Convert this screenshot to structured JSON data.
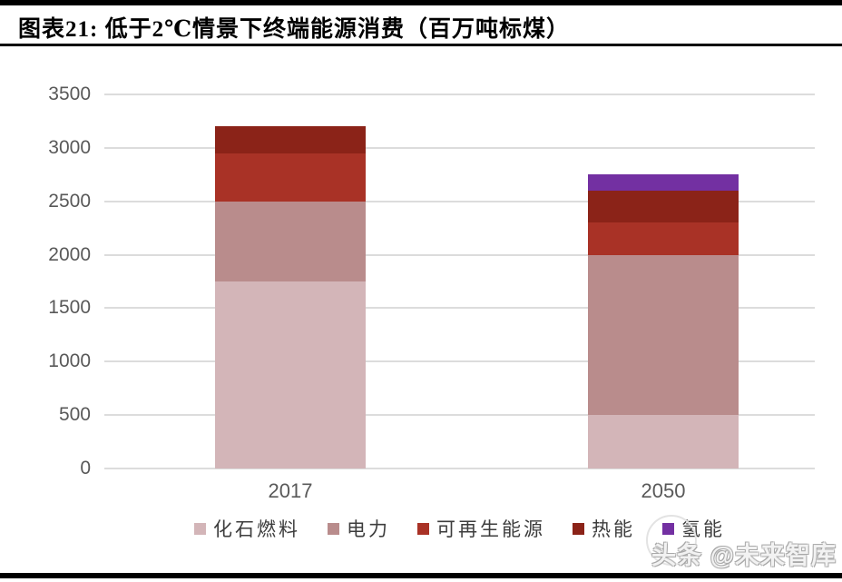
{
  "header": {
    "title": "图表21: 低于2℃情景下终端能源消费（百万吨标煤）"
  },
  "chart_data": {
    "type": "bar",
    "stacked": true,
    "title": "低于2℃情景下终端能源消费（百万吨标煤）",
    "categories": [
      "2017",
      "2050"
    ],
    "series": [
      {
        "name": "化石燃料",
        "color": "#d3b5b8",
        "values": [
          1750,
          500
        ]
      },
      {
        "name": "电力",
        "color": "#b98c8c",
        "values": [
          750,
          1500
        ]
      },
      {
        "name": "可再生能源",
        "color": "#a93226",
        "values": [
          450,
          300
        ]
      },
      {
        "name": "热能",
        "color": "#8b2318",
        "values": [
          250,
          300
        ]
      },
      {
        "name": "氢能",
        "color": "#7330a2",
        "values": [
          0,
          150
        ]
      }
    ],
    "xlabel": "",
    "ylabel": "",
    "ylim": [
      0,
      3500
    ],
    "ytick_step": 500,
    "yticks": [
      0,
      500,
      1000,
      1500,
      2000,
      2500,
      3000,
      3500
    ],
    "grid": true,
    "legend_position": "bottom"
  },
  "watermark": {
    "text": "头条 @未来智库"
  },
  "colors": {
    "gridline": "#dcdcdc",
    "axis_text": "#595959",
    "title_bar": "#000000"
  }
}
